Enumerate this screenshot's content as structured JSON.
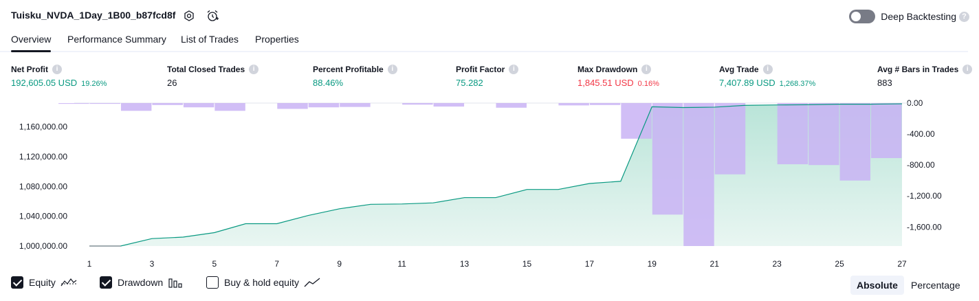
{
  "header": {
    "strategy_name": "Tuisku_NVDA_1Day_1B00_b87fcd8f",
    "deep_backtesting_label": "Deep Backtesting"
  },
  "tabs": [
    {
      "label": "Overview",
      "active": true
    },
    {
      "label": "Performance Summary",
      "active": false
    },
    {
      "label": "List of Trades",
      "active": false
    },
    {
      "label": "Properties",
      "active": false
    }
  ],
  "metrics": [
    {
      "label": "Net Profit",
      "value": "192,605.05 USD",
      "sub": "19.26%",
      "tone": "pos"
    },
    {
      "label": "Total Closed Trades",
      "value": "26",
      "sub": "",
      "tone": "neu"
    },
    {
      "label": "Percent Profitable",
      "value": "88.46%",
      "sub": "",
      "tone": "pos"
    },
    {
      "label": "Profit Factor",
      "value": "75.282",
      "sub": "",
      "tone": "pos"
    },
    {
      "label": "Max Drawdown",
      "value": "1,845.51 USD",
      "sub": "0.16%",
      "tone": "neg"
    },
    {
      "label": "Avg Trade",
      "value": "7,407.89 USD",
      "sub": "1,268.37%",
      "tone": "pos"
    },
    {
      "label": "Avg # Bars in Trades",
      "value": "883",
      "sub": "",
      "tone": "neu"
    }
  ],
  "legend": {
    "equity": {
      "label": "Equity",
      "checked": true
    },
    "drawdown": {
      "label": "Drawdown",
      "checked": true
    },
    "buy_hold": {
      "label": "Buy & hold equity",
      "checked": false
    }
  },
  "view_modes": {
    "absolute": "Absolute",
    "percentage": "Percentage",
    "selected": "absolute"
  },
  "colors": {
    "equity_line": "#089981",
    "equity_fill_top": "#b9e4d8",
    "equity_fill_bottom": "#e9f6f2",
    "drawdown_bar": "#c9b3f5",
    "positive": "#089981",
    "negative": "#f23645"
  },
  "chart_data": {
    "type": "area",
    "x": [
      1,
      2,
      3,
      4,
      5,
      6,
      7,
      8,
      9,
      10,
      11,
      12,
      13,
      14,
      15,
      16,
      17,
      18,
      19,
      20,
      21,
      22,
      23,
      24,
      25,
      26,
      27
    ],
    "x_tick_labels": [
      "1",
      "3",
      "5",
      "7",
      "9",
      "11",
      "13",
      "15",
      "17",
      "19",
      "21",
      "23",
      "25",
      "27"
    ],
    "x_range": [
      1,
      27
    ],
    "y_left_ticks": [
      "1,000,000.00",
      "1,040,000.00",
      "1,080,000.00",
      "1,120,000.00",
      "1,160,000.00"
    ],
    "y_left_range": [
      1000000,
      1192000
    ],
    "y_right_ticks": [
      "0.00",
      "-400.00",
      "-800.00",
      "-1,200.00",
      "-1,600.00"
    ],
    "y_right_range": [
      -1845.51,
      0
    ],
    "series": [
      {
        "name": "Equity",
        "kind": "line",
        "axis": "left",
        "values": [
          1000000,
          1000000,
          1010000,
          1012000,
          1018000,
          1030000,
          1030000,
          1041000,
          1050000,
          1056000,
          1056500,
          1058000,
          1065000,
          1065000,
          1076000,
          1076000,
          1084000,
          1087000,
          1187000,
          1186000,
          1186500,
          1189000,
          1189500,
          1189800,
          1190500,
          1190500,
          1191000
        ]
      },
      {
        "name": "Drawdown",
        "kind": "bar",
        "axis": "right",
        "values": [
          -10,
          -10,
          -100,
          -25,
          -55,
          -100,
          0,
          -75,
          -55,
          -50,
          0,
          -20,
          -45,
          0,
          -60,
          0,
          -30,
          -25,
          -460,
          -1440,
          -1845.51,
          -920,
          0,
          -790,
          -800,
          -1000,
          -710
        ]
      }
    ],
    "grid": false
  }
}
